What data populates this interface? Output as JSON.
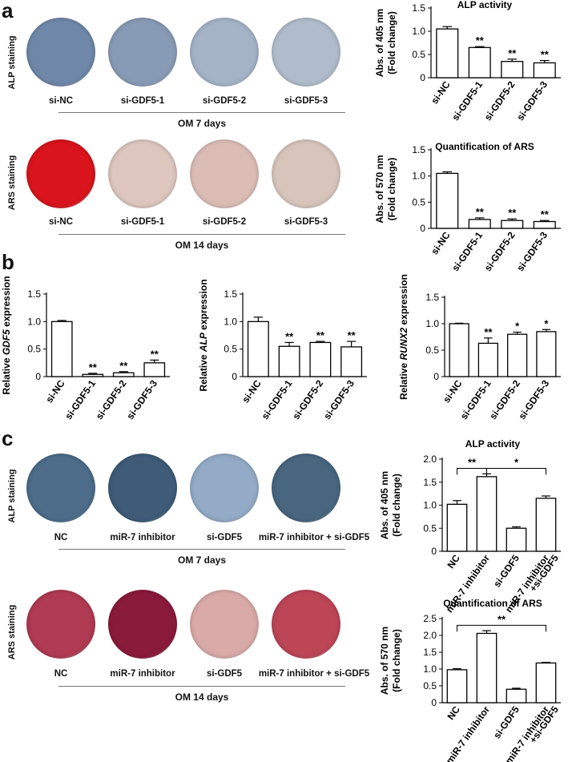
{
  "panels": [
    "a",
    "b",
    "c"
  ],
  "section_a": {
    "alp_row": {
      "label": "ALP staining",
      "dishes": [
        {
          "label": "si-NC",
          "color": "#6f87a8"
        },
        {
          "label": "si-GDF5-1",
          "color": "#889bb6"
        },
        {
          "label": "si-GDF5-2",
          "color": "#a4b3c6"
        },
        {
          "label": "si-GDF5-3",
          "color": "#b0bccb"
        }
      ],
      "condition": "OM  7 days"
    },
    "ars_row": {
      "label": "ARS staining",
      "dishes": [
        {
          "label": "si-NC",
          "color": "#d9141c"
        },
        {
          "label": "si-GDF5-1",
          "color": "#dcc6be"
        },
        {
          "label": "si-GDF5-2",
          "color": "#dbbdb6"
        },
        {
          "label": "si-GDF5-3",
          "color": "#d7c5bc"
        }
      ],
      "condition": "OM  14 days"
    }
  },
  "section_c": {
    "alp_row": {
      "label": "ALP staining",
      "dishes": [
        {
          "label": "NC",
          "color": "#4c6c8a"
        },
        {
          "label": "miR-7 inhibitor",
          "color": "#3e5b78"
        },
        {
          "label": "si-GDF5",
          "color": "#93abc6"
        },
        {
          "label": "miR-7 inhibitor + si-GDF5",
          "color": "#48667f"
        }
      ],
      "condition": "OM  7 days"
    },
    "ars_row": {
      "label": "ARS staining",
      "dishes": [
        {
          "label": "NC",
          "color": "#b03a52"
        },
        {
          "label": "miR-7 inhibitor",
          "color": "#8a1a3a"
        },
        {
          "label": "si-GDF5",
          "color": "#d9aaa8"
        },
        {
          "label": "miR-7 inhibitor + si-GDF5",
          "color": "#bc4556"
        }
      ],
      "condition": "OM  14 days"
    }
  },
  "chart_data": [
    {
      "id": "a-alp",
      "type": "bar",
      "title": "ALP activity",
      "ylabel_lines": [
        "Abs. of 405 nm",
        "(Fold change)"
      ],
      "categories": [
        "si-NC",
        "si-GDF5-1",
        "si-GDF5-2",
        "si-GDF5-3"
      ],
      "values": [
        1.05,
        0.65,
        0.35,
        0.32
      ],
      "errors": [
        0.05,
        0.02,
        0.05,
        0.05
      ],
      "stars": [
        "",
        "**",
        "**",
        "**"
      ],
      "ylim": [
        0,
        1.5
      ],
      "yticks": [
        "0",
        "0.5",
        "1.0",
        "1.5"
      ]
    },
    {
      "id": "a-ars",
      "type": "bar",
      "title": "Quantification of ARS",
      "ylabel_lines": [
        "Abs. of 570 nm",
        "(Fold change)"
      ],
      "categories": [
        "si-NC",
        "si-GDF5-1",
        "si-GDF5-2",
        "si-GDF5-3"
      ],
      "values": [
        1.05,
        0.17,
        0.15,
        0.13
      ],
      "errors": [
        0.03,
        0.03,
        0.03,
        0.02
      ],
      "stars": [
        "",
        "**",
        "**",
        "**"
      ],
      "ylim": [
        0,
        1.5
      ],
      "yticks": [
        "0",
        "0.5",
        "1.0",
        "1.5"
      ]
    },
    {
      "id": "b-gdf5",
      "type": "bar",
      "title": "",
      "ylabel_parts": [
        "Relative ",
        "GDF5",
        " expression"
      ],
      "categories": [
        "si-NC",
        "si-GDF5-1",
        "si-GDF5-2",
        "si-GDF5-3"
      ],
      "values": [
        1.0,
        0.04,
        0.07,
        0.25
      ],
      "errors": [
        0.02,
        0.02,
        0.02,
        0.05
      ],
      "stars": [
        "",
        "**",
        "**",
        "**"
      ],
      "ylim": [
        0,
        1.5
      ],
      "yticks": [
        "0",
        "0.5",
        "1.0",
        "1.5"
      ]
    },
    {
      "id": "b-alp",
      "type": "bar",
      "title": "",
      "ylabel_parts": [
        "Relative ",
        "ALP",
        " expression"
      ],
      "categories": [
        "si-NC",
        "si-GDF5-1",
        "si-GDF5-2",
        "si-GDF5-3"
      ],
      "values": [
        1.0,
        0.55,
        0.62,
        0.54
      ],
      "errors": [
        0.08,
        0.07,
        0.02,
        0.1
      ],
      "stars": [
        "",
        "**",
        "**",
        "**"
      ],
      "ylim": [
        0,
        1.5
      ],
      "yticks": [
        "0",
        "0.5",
        "1.0",
        "1.5"
      ]
    },
    {
      "id": "b-runx2",
      "type": "bar",
      "title": "",
      "ylabel_parts": [
        "Relative ",
        "RUNX2",
        " expression"
      ],
      "categories": [
        "si-NC",
        "si-GDF5-1",
        "si-GDF5-2",
        "si-GDF5-3"
      ],
      "values": [
        1.0,
        0.63,
        0.8,
        0.85
      ],
      "errors": [
        0.01,
        0.1,
        0.04,
        0.04
      ],
      "stars": [
        "",
        "**",
        "*",
        "*"
      ],
      "ylim": [
        0,
        1.5
      ],
      "yticks": [
        "0",
        "0.5",
        "1.0",
        "1.5"
      ]
    },
    {
      "id": "c-alp",
      "type": "bar",
      "title": "ALP activity",
      "ylabel_lines": [
        "Abs. of 405 nm",
        "(Fold change)"
      ],
      "categories": [
        "NC",
        "miR-7 inhibitor",
        "si-GDF5",
        "miR-7 inhibitor|+si-GDF5"
      ],
      "values": [
        1.02,
        1.62,
        0.5,
        1.15
      ],
      "errors": [
        0.08,
        0.06,
        0.03,
        0.05
      ],
      "stars": [
        "",
        "",
        "",
        ""
      ],
      "brackets": [
        {
          "from": 0,
          "to": 1,
          "label": "**",
          "level": 1.8
        },
        {
          "from": 1,
          "to": 3,
          "label": "*",
          "level": 1.8
        }
      ],
      "ylim": [
        0,
        2.0
      ],
      "yticks": [
        "0",
        "0.5",
        "1.0",
        "1.5",
        "2.0"
      ]
    },
    {
      "id": "c-ars",
      "type": "bar",
      "title": "Quantification of ARS",
      "ylabel_lines": [
        "Abs. of 570 nm",
        "(Fold change)"
      ],
      "categories": [
        "NC",
        "miR-7 inhibitor",
        "si-GDF5",
        "miR-7 inhibitor|+si-GDF5"
      ],
      "values": [
        0.98,
        2.06,
        0.4,
        1.18
      ],
      "errors": [
        0.03,
        0.08,
        0.03,
        0.02
      ],
      "stars": [
        "",
        "",
        "",
        ""
      ],
      "brackets": [
        {
          "from": 0,
          "to": 3,
          "label": "**",
          "level": 2.3
        }
      ],
      "ylim": [
        0,
        2.5
      ],
      "yticks": [
        "0",
        "0.5",
        "1.0",
        "1.5",
        "2.0",
        "2.5"
      ]
    }
  ]
}
